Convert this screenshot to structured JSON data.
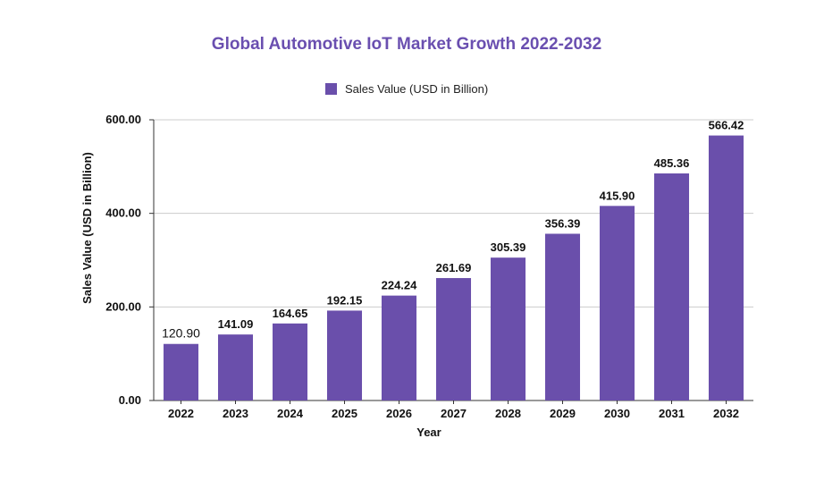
{
  "colors": {
    "title": "#6a4fb0",
    "bar": "#6a4fab",
    "first_label": "#26455c",
    "grid": "#cccccc",
    "axis": "#333333"
  },
  "chart_data": {
    "type": "bar",
    "title": "Global Automotive IoT Market Growth 2022-2032",
    "xlabel": "Year",
    "ylabel": "Sales Value (USD in Billion)",
    "ylim": [
      0,
      600
    ],
    "yticks": [
      0,
      200,
      400,
      600
    ],
    "ytick_labels": [
      "0.00",
      "200.00",
      "400.00",
      "600.00"
    ],
    "grid": true,
    "legend_position": "top",
    "categories": [
      "2022",
      "2023",
      "2024",
      "2025",
      "2026",
      "2027",
      "2028",
      "2029",
      "2030",
      "2031",
      "2032"
    ],
    "series": [
      {
        "name": "Sales Value (USD in Billion)",
        "values": [
          120.9,
          141.09,
          164.65,
          192.15,
          224.24,
          261.69,
          305.39,
          356.39,
          415.9,
          485.36,
          566.42
        ],
        "labels": [
          "120.90",
          "141.09",
          "164.65",
          "192.15",
          "224.24",
          "261.69",
          "305.39",
          "356.39",
          "415.90",
          "485.36",
          "566.42"
        ]
      }
    ]
  }
}
